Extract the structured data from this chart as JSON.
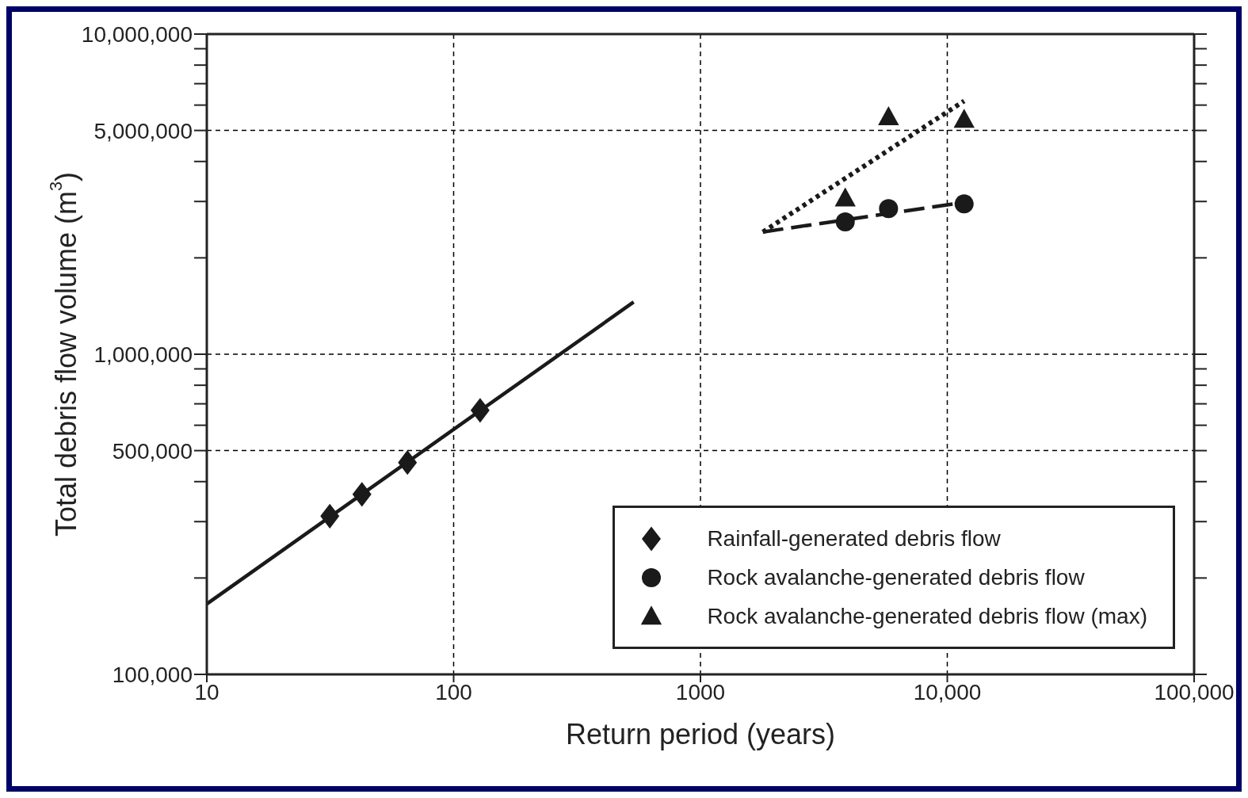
{
  "chart_data": {
    "type": "scatter",
    "xlabel": "Return period (years)",
    "ylabel": "Total debris flow volume (m$^{3}$)",
    "log": "xy",
    "grid": true,
    "legend": "bottom right",
    "xlim": [
      10,
      100000
    ],
    "xticks": [
      10,
      100,
      1000,
      {
        "value": 10000,
        "label": "10,000"
      },
      {
        "value": 100000,
        "label": "100,000"
      }
    ],
    "ylim": [
      100000,
      10000000
    ],
    "yticks": [
      {
        "value": 100000,
        "label": "100,000"
      },
      {
        "value": 200000,
        "label": null
      },
      {
        "value": 300000,
        "label": null
      },
      {
        "value": 400000,
        "label": null
      },
      {
        "value": 500000,
        "label": "500,000"
      },
      {
        "value": 600000,
        "label": null
      },
      {
        "value": 700000,
        "label": null
      },
      {
        "value": 800000,
        "label": null
      },
      {
        "value": 900000,
        "label": null
      },
      {
        "value": 1000000,
        "label": "1,000,000"
      },
      {
        "value": 2000000,
        "label": null
      },
      {
        "value": 3000000,
        "label": null
      },
      {
        "value": 4000000,
        "label": null
      },
      {
        "value": 5000000,
        "label": "5,000,000"
      },
      {
        "value": 6000000,
        "label": null
      },
      {
        "value": 7000000,
        "label": null
      },
      {
        "value": 8000000,
        "label": null
      },
      {
        "value": 9000000,
        "label": null
      },
      {
        "value": 10000000,
        "label": "10,000,000"
      }
    ],
    "series": [
      {
        "name": "Rainfall-generated debris flow",
        "marker": "diamond",
        "color": "#1a1a1a",
        "x": [
          31.5,
          42.5,
          65,
          128
        ],
        "values": [
          312000,
          365000,
          459000,
          668000
        ]
      },
      {
        "type": "line",
        "line_style": "solid",
        "marker": "none",
        "color": "#1a1a1a",
        "x": [
          10,
          536
        ],
        "values": [
          166000,
          1455000
        ]
      },
      {
        "name": "Rock avalanche-generated debris flow",
        "marker": "circle",
        "color": "#1a1a1a",
        "x": [
          3860,
          5780,
          11700
        ],
        "values": [
          2590000,
          2850000,
          2950000
        ]
      },
      {
        "type": "line",
        "line_style": "dashed",
        "marker": "none",
        "color": "#1a1a1a",
        "x": [
          1790,
          11700
        ],
        "values": [
          2410000,
          2980000
        ]
      },
      {
        "name": "Rock avalanche-generated debris flow (max)",
        "marker": "triangle",
        "color": "#1a1a1a",
        "x": [
          3860,
          5780,
          11700
        ],
        "values": [
          3070000,
          5500000,
          5400000
        ]
      },
      {
        "type": "line",
        "line_style": "dotted",
        "marker": "none",
        "color": "#1a1a1a",
        "x": [
          1790,
          11700
        ],
        "values": [
          2410000,
          6180000
        ]
      }
    ]
  }
}
